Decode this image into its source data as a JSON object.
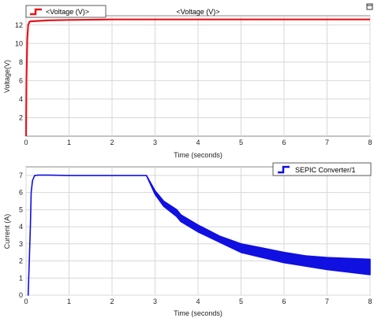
{
  "chart_data": [
    {
      "type": "line",
      "title": "<Voltage (V)>",
      "xlabel": "Time (seconds)",
      "ylabel": "Voltage(V)",
      "xlim": [
        0,
        8
      ],
      "ylim": [
        0,
        13
      ],
      "xticks": [
        "0",
        "1",
        "2",
        "3",
        "4",
        "5",
        "6",
        "7",
        "8"
      ],
      "yticks": [
        "2",
        "4",
        "6",
        "8",
        "10",
        "12"
      ],
      "grid": true,
      "legend_position": "top-left",
      "series": [
        {
          "name": "<Voltage (V)>",
          "color": "#e8141c",
          "x": [
            0,
            0.01,
            0.03,
            0.05,
            0.08,
            0.1,
            0.5,
            1,
            2,
            3,
            4,
            5,
            6,
            7,
            8
          ],
          "y": [
            0,
            6,
            10.5,
            12.0,
            12.35,
            12.4,
            12.5,
            12.55,
            12.6,
            12.6,
            12.6,
            12.6,
            12.6,
            12.6,
            12.6
          ]
        }
      ]
    },
    {
      "type": "line",
      "title": "",
      "xlabel": "Time (seconds)",
      "ylabel": "Current (A)",
      "xlim": [
        0,
        8
      ],
      "ylim": [
        0,
        7.5
      ],
      "xticks": [
        "0",
        "1",
        "2",
        "3",
        "4",
        "5",
        "6",
        "7",
        "8"
      ],
      "yticks": [
        "0",
        "1",
        "2",
        "3",
        "4",
        "5",
        "6",
        "7"
      ],
      "grid": true,
      "legend_position": "top-right",
      "series": [
        {
          "name": "SEPIC Converter/1",
          "color": "#1010e0",
          "x": [
            0.05,
            0.1,
            0.12,
            0.15,
            0.2,
            0.3,
            0.5,
            1,
            1.5,
            2,
            2.5,
            2.8,
            3,
            3.2,
            3.5,
            3.6,
            4,
            4.5,
            5,
            5.5,
            6,
            6.5,
            7,
            7.5,
            8
          ],
          "y_upper": [
            0,
            4,
            6,
            6.7,
            7.0,
            7.02,
            7.02,
            7.0,
            7.0,
            7.0,
            7.0,
            7.0,
            6.1,
            5.5,
            5.0,
            4.7,
            4.1,
            3.45,
            3.0,
            2.75,
            2.5,
            2.3,
            2.2,
            2.15,
            2.1
          ],
          "y_lower": [
            0,
            4,
            6,
            6.7,
            7.0,
            7.02,
            7.02,
            7.0,
            7.0,
            7.0,
            7.0,
            7.0,
            5.9,
            5.2,
            4.6,
            4.3,
            3.7,
            3.1,
            2.5,
            2.2,
            1.9,
            1.7,
            1.5,
            1.35,
            1.2
          ]
        }
      ]
    }
  ]
}
